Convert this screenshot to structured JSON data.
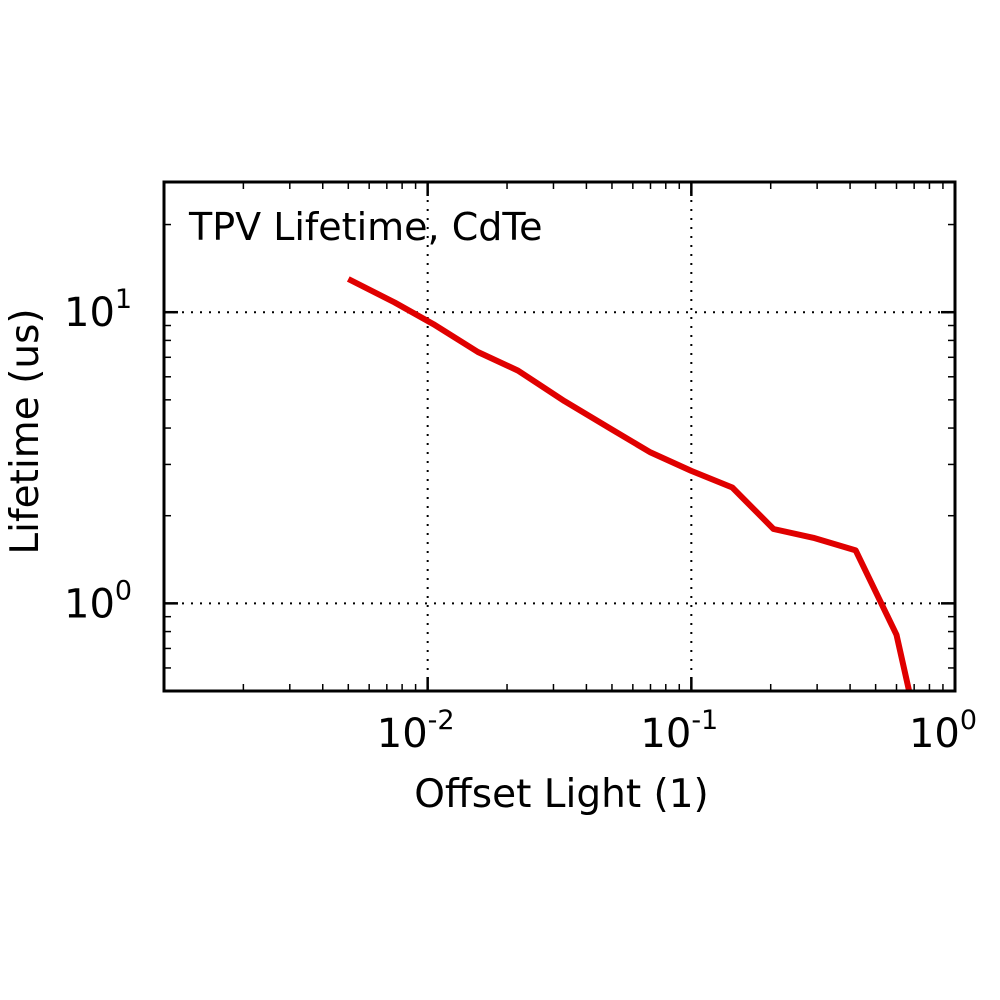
{
  "chart_data": {
    "type": "line",
    "title": "TPV Lifetime, CdTe",
    "xlabel": "Offset Light (1)",
    "ylabel": "Lifetime (us)",
    "xscale": "log",
    "yscale": "log",
    "xlim": [
      0.001,
      1
    ],
    "ylim": [
      0.5,
      28
    ],
    "grid": true,
    "xticks": [
      {
        "value": 0.01,
        "base": "10",
        "exp": "-2"
      },
      {
        "value": 0.1,
        "base": "10",
        "exp": "-1"
      },
      {
        "value": 1,
        "base": "10",
        "exp": "0"
      }
    ],
    "yticks": [
      {
        "value": 1,
        "base": "10",
        "exp": "0"
      },
      {
        "value": 10,
        "base": "10",
        "exp": "1"
      }
    ],
    "series": [
      {
        "color": "#e00000",
        "x": [
          0.005,
          0.0075,
          0.0105,
          0.0155,
          0.022,
          0.033,
          0.05,
          0.07,
          0.1,
          0.143,
          0.205,
          0.29,
          0.42,
          0.6,
          0.67
        ],
        "y": [
          13.0,
          10.8,
          9.1,
          7.3,
          6.3,
          4.95,
          3.95,
          3.3,
          2.85,
          2.5,
          1.8,
          1.68,
          1.52,
          0.78,
          0.5
        ]
      }
    ]
  }
}
